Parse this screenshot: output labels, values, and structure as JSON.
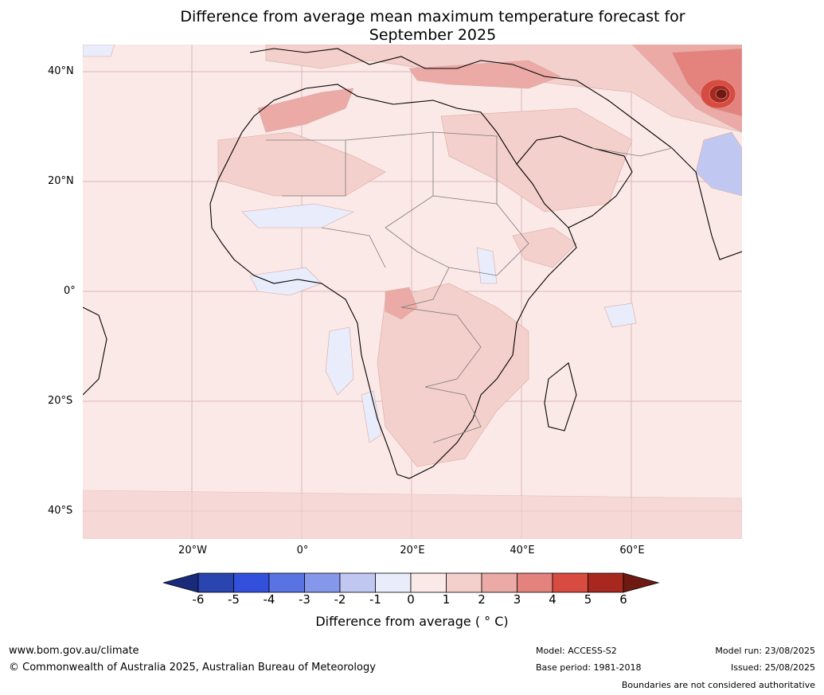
{
  "title_line1": "Difference from average mean maximum temperature forecast for",
  "title_line2": "September 2025",
  "lat_labels": [
    "40°N",
    "20°N",
    "0°",
    "20°S",
    "40°S"
  ],
  "lon_labels": [
    "20°W",
    "0°",
    "20°E",
    "40°E",
    "60°E"
  ],
  "colorbar": {
    "ticks": [
      "-6",
      "-5",
      "-4",
      "-3",
      "-2",
      "-1",
      "0",
      "1",
      "2",
      "3",
      "4",
      "5",
      "6"
    ],
    "colors": [
      "#1a2a7a",
      "#2a44b0",
      "#3350dd",
      "#5a73e3",
      "#8597ea",
      "#c0c8f2",
      "#e9ecfb",
      "#fbe9e7",
      "#f4d0cc",
      "#ebaaa6",
      "#e4837d",
      "#d84b40",
      "#a82820",
      "#6e1a12"
    ],
    "label": "Difference from average ( ° C)"
  },
  "footer": {
    "website": "www.bom.gov.au/climate",
    "copyright": "© Commonwealth of Australia 2025, Australian Bureau of Meteorology",
    "model": "Model: ACCESS-S2",
    "base_period": "Base period: 1981-2018",
    "model_run": "Model run: 23/08/2025",
    "issued": "Issued: 25/08/2025",
    "disclaimer": "Boundaries are not considered authoritative"
  }
}
